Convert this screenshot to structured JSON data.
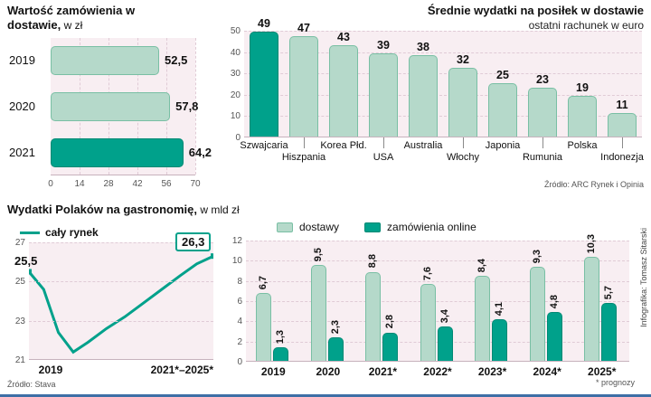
{
  "colors": {
    "dark": "#00a18b",
    "dark_border": "#008974",
    "light": "#b5d9ca",
    "light_border": "#79bfa4",
    "plot_bg": "#f8eef2",
    "grid": "#e0cbd6",
    "axis": "#c7b2bd",
    "blue_rule": "#3e6fa6",
    "text": "#111111"
  },
  "credit": "Infografika: Tomasz Sitarski",
  "chart_data": [
    {
      "type": "bar",
      "orientation": "horizontal",
      "title": "Wartość zamówienia w dostawie,",
      "unit": " w zł",
      "categories": [
        "2019",
        "2020",
        "2021"
      ],
      "values": [
        52.5,
        57.8,
        64.2
      ],
      "value_labels": [
        "52,5",
        "57,8",
        "64,2"
      ],
      "xlim": [
        0,
        70
      ],
      "x_ticks": [
        "0",
        "14",
        "28",
        "42",
        "56",
        "70"
      ],
      "highlight_index": 2
    },
    {
      "type": "bar",
      "title": "Średnie wydatki na posiłek w dostawie",
      "subtitle": "ostatni rachunek w euro",
      "categories": [
        "Szwajcaria",
        "Hiszpania",
        "Korea Płd.",
        "USA",
        "Australia",
        "Włochy",
        "Japonia",
        "Rumunia",
        "Polska",
        "Indonezja"
      ],
      "values": [
        49,
        47,
        43,
        39,
        38,
        32,
        25,
        23,
        19,
        11
      ],
      "ylim": [
        0,
        50
      ],
      "y_ticks": [
        "50",
        "40",
        "30",
        "20",
        "10",
        "0"
      ],
      "highlight_index": 0,
      "source": "Źródło: ARC Rynek i Opinia"
    },
    {
      "type": "line",
      "title": "Wydatki Polaków na gastronomię,",
      "unit": " w mld zł",
      "legend": "cały rynek",
      "ylim": [
        21,
        27
      ],
      "y_ticks": [
        "27",
        "25",
        "23",
        "21"
      ],
      "points": [
        [
          0,
          25.5
        ],
        [
          0.08,
          24.6
        ],
        [
          0.16,
          22.4
        ],
        [
          0.24,
          21.4
        ],
        [
          0.32,
          21.9
        ],
        [
          0.42,
          22.6
        ],
        [
          0.52,
          23.2
        ],
        [
          0.62,
          23.9
        ],
        [
          0.72,
          24.6
        ],
        [
          0.82,
          25.3
        ],
        [
          0.91,
          25.9
        ],
        [
          1,
          26.3
        ]
      ],
      "start_label": "25,5",
      "end_label": "26,3",
      "x_labels": [
        "2019",
        "2021*–2025*"
      ],
      "source": "Źródło: Stava"
    },
    {
      "type": "bar",
      "grouped": true,
      "legend": [
        {
          "label": "dostawy",
          "swatch": "light"
        },
        {
          "label": "zamówienia online",
          "swatch": "dark"
        }
      ],
      "categories": [
        "2019",
        "2020",
        "2021*",
        "2022*",
        "2023*",
        "2024*",
        "2025*"
      ],
      "series": [
        {
          "name": "dostawy",
          "values": [
            6.7,
            9.5,
            8.8,
            7.6,
            8.4,
            9.3,
            10.3
          ],
          "labels": [
            "6,7",
            "9,5",
            "8,8",
            "7,6",
            "8,4",
            "9,3",
            "10,3"
          ]
        },
        {
          "name": "zamówienia online",
          "values": [
            1.3,
            2.3,
            2.8,
            3.4,
            4.1,
            4.8,
            5.7
          ],
          "labels": [
            "1,3",
            "2,3",
            "2,8",
            "3,4",
            "4,1",
            "4,8",
            "5,7"
          ]
        }
      ],
      "ylim": [
        0,
        12
      ],
      "y_ticks": [
        "12",
        "10",
        "8",
        "6",
        "4",
        "2",
        "0"
      ],
      "footnote": "* prognozy"
    }
  ]
}
